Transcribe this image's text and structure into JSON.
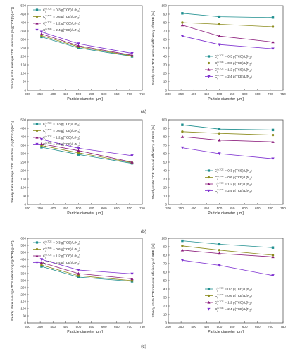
{
  "figure": {
    "panel_labels": [
      "(a)",
      "(b)",
      "(c)"
    ],
    "series_colors": [
      "#1f8f8f",
      "#8c8c1e",
      "#8a1a7a",
      "#7d2fd0"
    ],
    "series_markers": [
      "square",
      "circle",
      "triangle-up",
      "triangle-down"
    ]
  },
  "chart_data": [
    {
      "type": "line",
      "panel": "(a)",
      "xlabel": "Particle diameter [μm]",
      "ylabel": "Steady state average TCE retention [mg(TCE)/g(AC)]",
      "xlim": [
        300,
        750
      ],
      "ylim": [
        0,
        500
      ],
      "xticks": [
        300,
        350,
        400,
        450,
        500,
        550,
        600,
        650,
        700,
        750
      ],
      "yticks": [
        0,
        50,
        100,
        150,
        200,
        250,
        300,
        350,
        400,
        450,
        500
      ],
      "legend": "top-right",
      "x": [
        355,
        500,
        710
      ],
      "series": [
        {
          "name": "0.3 g(TCE)/L(N2)",
          "values": [
            315,
            250,
            200
          ]
        },
        {
          "name": "0.6 g(TCE)/L(N2)",
          "values": [
            323,
            257,
            203
          ]
        },
        {
          "name": "1.2 g(TCE)/L(N2)",
          "values": [
            333,
            263,
            207
          ]
        },
        {
          "name": "2.4 g(TCE)/L(N2)",
          "values": [
            345,
            275,
            218
          ]
        }
      ]
    },
    {
      "type": "line",
      "panel": "(a)",
      "xlabel": "Particle diameter [μm]",
      "ylabel": "Steady state TCE removal efficiency of IRFB [%]",
      "xlim": [
        300,
        750
      ],
      "ylim": [
        0,
        100
      ],
      "xticks": [
        300,
        350,
        400,
        450,
        500,
        550,
        600,
        650,
        700,
        750
      ],
      "yticks": [
        0,
        10,
        20,
        30,
        40,
        50,
        60,
        70,
        80,
        90,
        100
      ],
      "legend": "bottom-right",
      "x": [
        355,
        500,
        710
      ],
      "series": [
        {
          "name": "0.3 g(TCE)/L(N2)",
          "values": [
            91,
            87,
            86
          ]
        },
        {
          "name": "0.6 g(TCE)/L(N2)",
          "values": [
            80,
            78,
            75
          ]
        },
        {
          "name": "1.2 g(TCE)/L(N2)",
          "values": [
            77,
            64,
            57
          ]
        },
        {
          "name": "2.4 g(TCE)/L(N2)",
          "values": [
            64,
            54,
            49
          ]
        }
      ]
    },
    {
      "type": "line",
      "panel": "(b)",
      "xlabel": "Particle diameter [μm]",
      "ylabel": "Steady state average TCE retention [mg(TCE)/g(AC)]",
      "xlim": [
        300,
        750
      ],
      "ylim": [
        0,
        500
      ],
      "xticks": [
        300,
        350,
        400,
        450,
        500,
        550,
        600,
        650,
        700,
        750
      ],
      "yticks": [
        0,
        50,
        100,
        150,
        200,
        250,
        300,
        350,
        400,
        450,
        500
      ],
      "legend": "top-right",
      "x": [
        355,
        500,
        710
      ],
      "series": [
        {
          "name": "0.3 g(TCE)/L(N2)",
          "values": [
            338,
            295,
            243
          ]
        },
        {
          "name": "0.6 g(TCE)/L(N2)",
          "values": [
            348,
            305,
            247
          ]
        },
        {
          "name": "1.2 g(TCE)/L(N2)",
          "values": [
            358,
            318,
            250
          ]
        },
        {
          "name": "2.4 g(TCE)/L(N2)",
          "values": [
            385,
            332,
            288
          ]
        }
      ]
    },
    {
      "type": "line",
      "panel": "(b)",
      "xlabel": "Particle diameter [μm]",
      "ylabel": "Steady state TCE removal efficiency of IRFB [%]",
      "xlim": [
        300,
        750
      ],
      "ylim": [
        0,
        100
      ],
      "xticks": [
        300,
        350,
        400,
        450,
        500,
        550,
        600,
        650,
        700,
        750
      ],
      "yticks": [
        0,
        10,
        20,
        30,
        40,
        50,
        60,
        70,
        80,
        90,
        100
      ],
      "legend": "bottom-right",
      "x": [
        355,
        500,
        710
      ],
      "series": [
        {
          "name": "0.3 g(TCE)/L(N2)",
          "values": [
            94,
            89,
            88
          ]
        },
        {
          "name": "0.6 g(TCE)/L(N2)",
          "values": [
            86,
            84,
            82
          ]
        },
        {
          "name": "1.2 g(TCE)/L(N2)",
          "values": [
            80,
            76,
            74
          ]
        },
        {
          "name": "2.4 g(TCE)/L(N2)",
          "values": [
            67,
            60,
            54
          ]
        }
      ]
    },
    {
      "type": "line",
      "panel": "(c)",
      "xlabel": "Particle diameter [μm]",
      "ylabel": "Steady state average TCE retention [mg(TCE)/g(AC)]",
      "xlim": [
        300,
        750
      ],
      "ylim": [
        0,
        600
      ],
      "xticks": [
        300,
        350,
        400,
        450,
        500,
        550,
        600,
        650,
        700,
        750
      ],
      "yticks": [
        0,
        50,
        100,
        150,
        200,
        250,
        300,
        350,
        400,
        450,
        500,
        550,
        600
      ],
      "legend": "top-right",
      "x": [
        355,
        500,
        710
      ],
      "series": [
        {
          "name": "0.3 g(TCE)/L(N2)",
          "values": [
            400,
            325,
            295
          ]
        },
        {
          "name": "0.6 g(TCE)/L(N2)",
          "values": [
            410,
            335,
            300
          ]
        },
        {
          "name": "1.2 g(TCE)/L(N2)",
          "values": [
            428,
            350,
            313
          ]
        },
        {
          "name": "2.4 g(TCE)/L(N2)",
          "values": [
            450,
            375,
            348
          ]
        }
      ]
    },
    {
      "type": "line",
      "panel": "(c)",
      "xlabel": "Particle diameter [μm]",
      "ylabel": "Steady state TCE removal efficiency of IRFB [%]",
      "xlim": [
        300,
        750
      ],
      "ylim": [
        0,
        100
      ],
      "xticks": [
        300,
        350,
        400,
        450,
        500,
        550,
        600,
        650,
        700,
        750
      ],
      "yticks": [
        0,
        10,
        20,
        30,
        40,
        50,
        60,
        70,
        80,
        90,
        100
      ],
      "legend": "bottom-right",
      "x": [
        355,
        500,
        710
      ],
      "series": [
        {
          "name": "0.3 g(TCE)/L(N2)",
          "values": [
            97,
            93,
            89
          ]
        },
        {
          "name": "0.6 g(TCE)/L(N2)",
          "values": [
            91,
            86,
            80
          ]
        },
        {
          "name": "1.2 g(TCE)/L(N2)",
          "values": [
            86,
            82,
            78
          ]
        },
        {
          "name": "2.4 g(TCE)/L(N2)",
          "values": [
            74,
            68,
            56
          ]
        }
      ]
    }
  ]
}
